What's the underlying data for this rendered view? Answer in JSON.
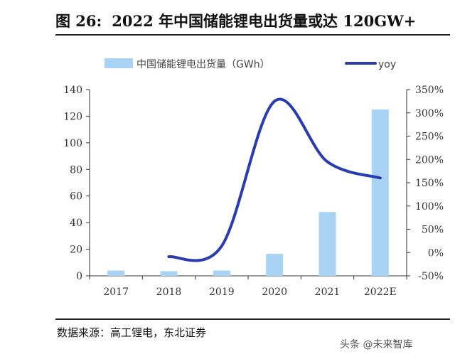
{
  "header": {
    "figure_label": "图 26:",
    "title": "2022 年中国储能锂电出货量或达 120GW+"
  },
  "footer": {
    "source": "数据来源：高工锂电，东北证券",
    "watermark": "头条 @未来智库"
  },
  "colors": {
    "bar": "#a9d3f4",
    "line": "#2b3bb0",
    "axis": "#333333"
  },
  "chart_data": {
    "type": "bar",
    "categories": [
      "2017",
      "2018",
      "2019",
      "2020",
      "2021",
      "2022E"
    ],
    "series": [
      {
        "name": "中国储能锂电出货量（GWh）",
        "type": "bar",
        "axis": "left",
        "values": [
          4,
          3.5,
          4,
          16.5,
          48,
          125
        ]
      },
      {
        "name": "yoy",
        "type": "line",
        "axis": "right",
        "values": [
          null,
          -9,
          14,
          325,
          195,
          160
        ]
      }
    ],
    "y_left": {
      "min": 0,
      "max": 140,
      "ticks": [
        0,
        20,
        40,
        60,
        80,
        100,
        120,
        140
      ]
    },
    "y_right": {
      "min": -50,
      "max": 350,
      "ticks": [
        -50,
        0,
        50,
        100,
        150,
        200,
        250,
        300,
        350
      ],
      "tick_labels": [
        "-50%",
        "0%",
        "50%",
        "100%",
        "150%",
        "200%",
        "250%",
        "300%",
        "350%"
      ]
    },
    "legend_placement": "top",
    "grid": false
  }
}
